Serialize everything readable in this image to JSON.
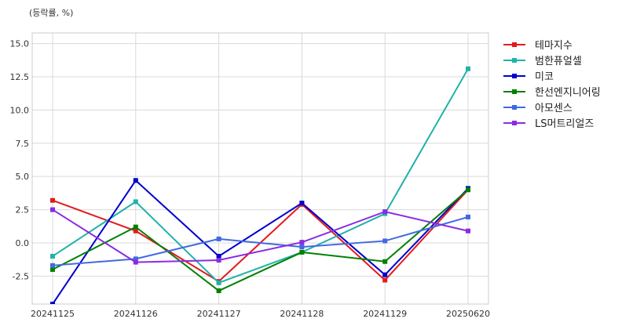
{
  "unit_label": "(등락률, %)",
  "chart_data": {
    "type": "line",
    "categories": [
      "20241125",
      "20241126",
      "20241127",
      "20241128",
      "20241129",
      "20250620"
    ],
    "ylim": [
      -4.6,
      15.8
    ],
    "yticks": [
      -2.5,
      0.0,
      2.5,
      5.0,
      7.5,
      10.0,
      12.5,
      15.0
    ],
    "ytick_labels": [
      "-2.5",
      "0.0",
      "2.5",
      "5.0",
      "7.5",
      "10.0",
      "12.5",
      "15.0"
    ],
    "grid": true,
    "legend_position": "right",
    "series": [
      {
        "name": "테마지수",
        "color": "#e31a1c",
        "values": [
          3.2,
          0.9,
          -2.9,
          2.9,
          -2.8,
          4.0
        ]
      },
      {
        "name": "범한퓨얼셀",
        "color": "#20b2aa",
        "values": [
          -1.0,
          3.1,
          -3.0,
          -0.7,
          2.2,
          13.1
        ]
      },
      {
        "name": "미코",
        "color": "#0000cd",
        "values": [
          -4.6,
          4.7,
          -1.0,
          3.0,
          -2.4,
          4.1
        ]
      },
      {
        "name": "한선엔지니어링",
        "color": "#008000",
        "values": [
          -2.0,
          1.2,
          -3.6,
          -0.7,
          -1.4,
          4.0
        ]
      },
      {
        "name": "아모센스",
        "color": "#4169e1",
        "values": [
          -1.7,
          -1.2,
          0.3,
          -0.3,
          0.15,
          1.95
        ]
      },
      {
        "name": "LS머트리얼즈",
        "color": "#8a2be2",
        "values": [
          2.5,
          -1.45,
          -1.3,
          0.05,
          2.35,
          0.9
        ]
      }
    ]
  }
}
